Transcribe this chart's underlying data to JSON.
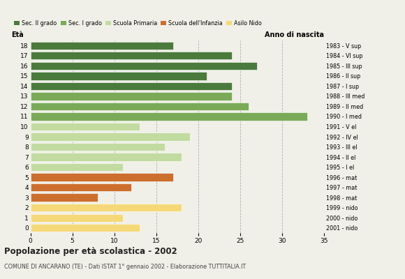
{
  "ages": [
    18,
    17,
    16,
    15,
    14,
    13,
    12,
    11,
    10,
    9,
    8,
    7,
    6,
    5,
    4,
    3,
    2,
    1,
    0
  ],
  "values": [
    17,
    24,
    27,
    21,
    24,
    24,
    26,
    33,
    13,
    19,
    16,
    18,
    11,
    17,
    12,
    8,
    18,
    11,
    13
  ],
  "anno_nascita": [
    "1983 - V sup",
    "1984 - VI sup",
    "1985 - III sup",
    "1986 - II sup",
    "1987 - I sup",
    "1988 - III med",
    "1989 - II med",
    "1990 - I med",
    "1991 - V el",
    "1992 - IV el",
    "1993 - III el",
    "1994 - II el",
    "1995 - I el",
    "1996 - mat",
    "1997 - mat",
    "1998 - mat",
    "1999 - nido",
    "2000 - nido",
    "2001 - nido"
  ],
  "colors": [
    "#4a7a3c",
    "#4a7a3c",
    "#4a7a3c",
    "#4a7a3c",
    "#4a7a3c",
    "#7aaa58",
    "#7aaa58",
    "#7aaa58",
    "#c2dba0",
    "#c2dba0",
    "#c2dba0",
    "#c2dba0",
    "#c2dba0",
    "#cc6e2e",
    "#cc6e2e",
    "#cc6e2e",
    "#f5d878",
    "#f5d878",
    "#f5d878"
  ],
  "legend_labels": [
    "Sec. II grado",
    "Sec. I grado",
    "Scuola Primaria",
    "Scuola dell'Infanzia",
    "Asilo Nido"
  ],
  "legend_colors": [
    "#4a7a3c",
    "#7aaa58",
    "#c2dba0",
    "#cc6e2e",
    "#f5d878"
  ],
  "eta_label": "Età",
  "anno_label": "Anno di nascita",
  "title": "Popolazione per età scolastica - 2002",
  "subtitle": "COMUNE DI ANCARANO (TE) - Dati ISTAT 1° gennaio 2002 - Elaborazione TUTTITALIA.IT",
  "xlim": [
    0,
    35
  ],
  "xticks": [
    0,
    5,
    10,
    15,
    20,
    25,
    30,
    35
  ],
  "background_color": "#f0f0e8",
  "grid_color": "#b0b0b0"
}
